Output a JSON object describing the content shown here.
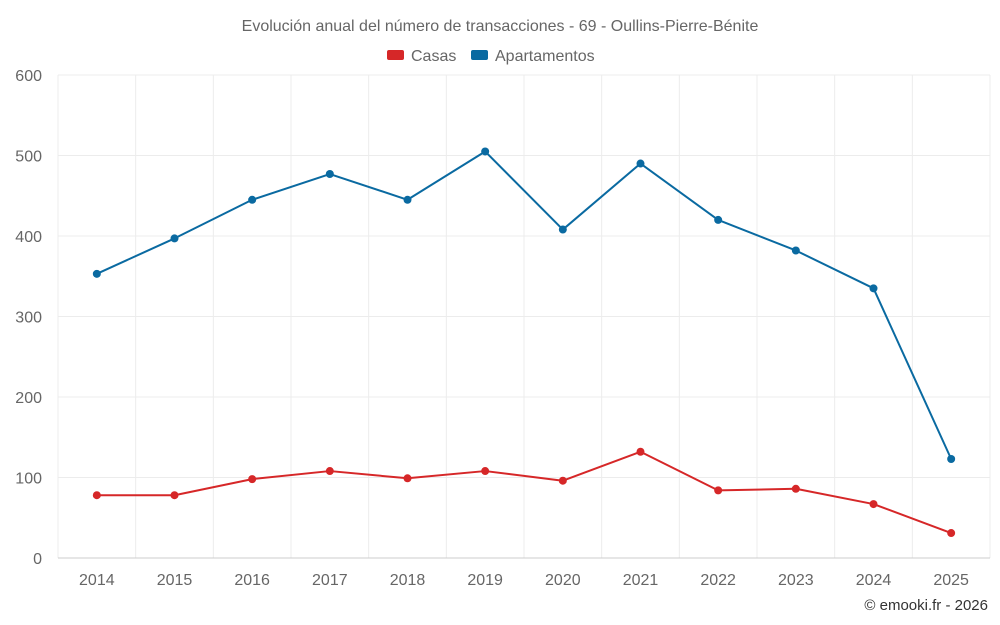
{
  "chart_data": {
    "type": "line",
    "title": "Evolución anual del número de transacciones - 69 - Oullins-Pierre-Bénite",
    "categories": [
      "2014",
      "2015",
      "2016",
      "2017",
      "2018",
      "2019",
      "2020",
      "2021",
      "2022",
      "2023",
      "2024",
      "2025"
    ],
    "series": [
      {
        "name": "Casas",
        "color": "#d62728",
        "values": [
          78,
          78,
          98,
          108,
          99,
          108,
          96,
          132,
          84,
          86,
          67,
          31
        ]
      },
      {
        "name": "Apartamentos",
        "color": "#0a6aa1",
        "values": [
          353,
          397,
          445,
          477,
          445,
          505,
          408,
          490,
          420,
          382,
          335,
          123
        ]
      }
    ],
    "yticks": [
      "0",
      "100",
      "200",
      "300",
      "400",
      "500",
      "600"
    ],
    "ylim": [
      0,
      600
    ],
    "xlabel": "",
    "ylabel": "",
    "legend_position": "top-center",
    "grid": true
  },
  "credit": "© emooki.fr - 2026"
}
